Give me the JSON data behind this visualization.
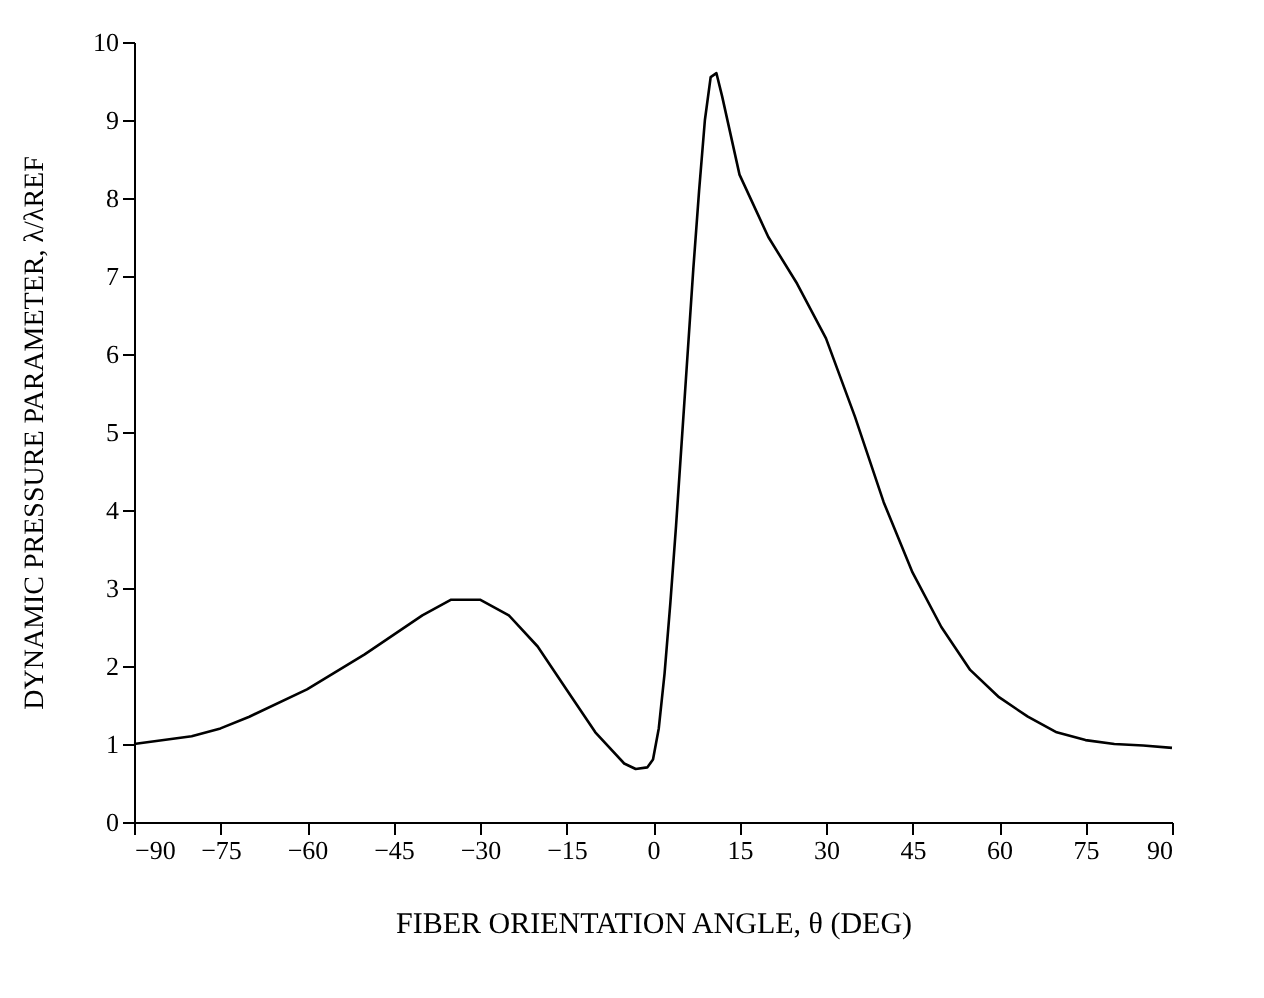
{
  "chart_data": {
    "type": "line",
    "xlabel": "FIBER ORIENTATION ANGLE, θ (DEG)",
    "ylabel": "DYNAMIC PRESSURE PARAMETER, λ/λREF",
    "series": [
      {
        "color": "#000000",
        "x": [
          -90,
          -80,
          -75,
          -70,
          -60,
          -50,
          -45,
          -40,
          -35,
          -30,
          -25,
          -20,
          -15,
          -10,
          -5,
          -3,
          -1,
          0,
          1,
          2,
          3,
          4,
          5,
          6,
          7,
          8,
          9,
          10,
          11,
          12,
          15,
          20,
          25,
          30,
          35,
          40,
          45,
          50,
          55,
          60,
          65,
          70,
          75,
          80,
          85,
          90
        ],
        "values": [
          1.0,
          1.1,
          1.2,
          1.35,
          1.7,
          2.15,
          2.4,
          2.65,
          2.85,
          2.85,
          2.65,
          2.25,
          1.7,
          1.15,
          0.75,
          0.68,
          0.7,
          0.8,
          1.2,
          1.9,
          2.8,
          3.8,
          4.9,
          6.0,
          7.1,
          8.1,
          9.0,
          9.55,
          9.6,
          9.3,
          8.3,
          7.5,
          6.9,
          6.2,
          5.2,
          4.1,
          3.2,
          2.5,
          1.95,
          1.6,
          1.35,
          1.15,
          1.05,
          1.0,
          0.98,
          0.95
        ]
      }
    ],
    "xlim": [
      -90,
      90
    ],
    "xticks": [
      -90,
      -75,
      -60,
      -45,
      -30,
      -15,
      0,
      15,
      30,
      45,
      60,
      75,
      90
    ],
    "ylim": [
      0,
      10
    ],
    "yticks": [
      0,
      1,
      2,
      3,
      4,
      5,
      6,
      7,
      8,
      9,
      10
    ],
    "grid": false,
    "legend": false,
    "marker": "none",
    "line_style": "solid"
  }
}
